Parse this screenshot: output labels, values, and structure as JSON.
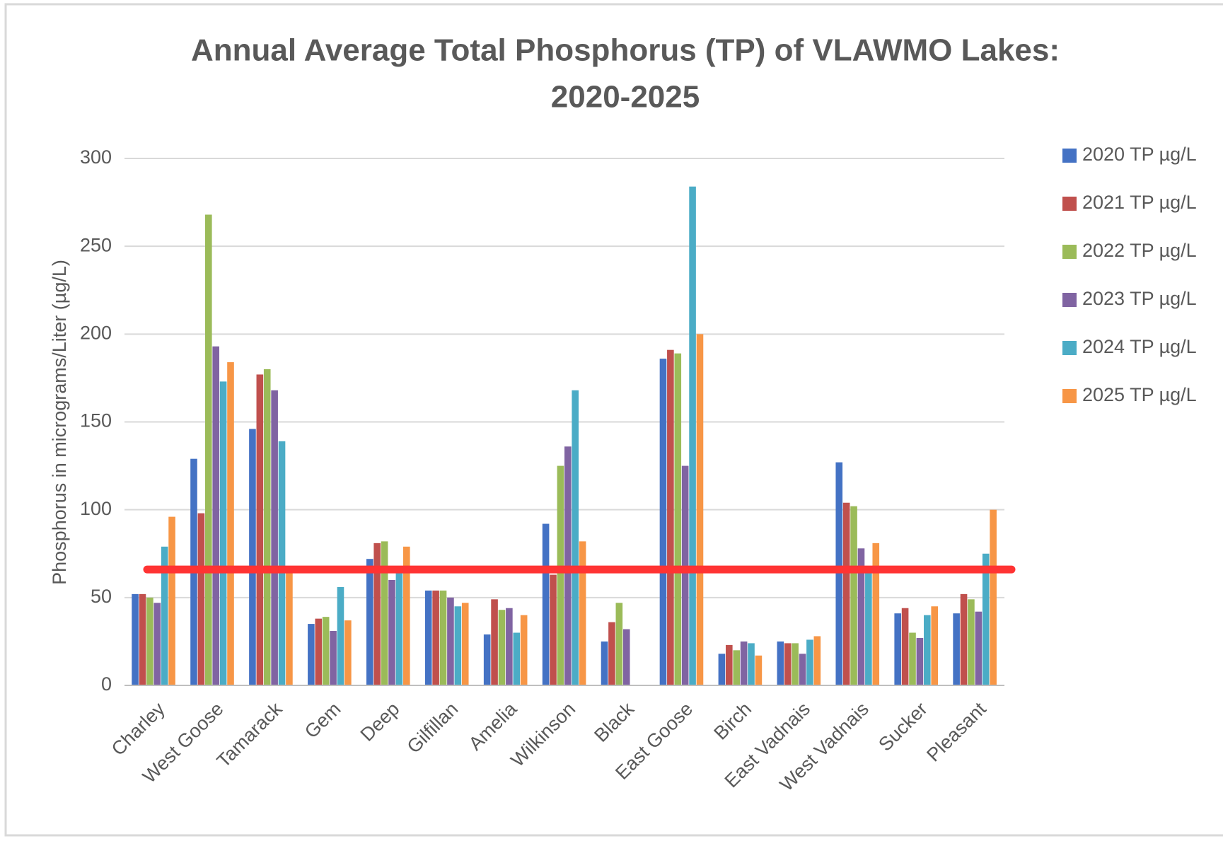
{
  "chart_data": {
    "type": "bar",
    "title": "Annual Average Total Phosphorus (TP) of VLAWMO Lakes:",
    "subtitle": "2020-2025",
    "y_label": "Phosphorus in micrograms/Liter (µg/L)",
    "categories": [
      "Charley",
      "West Goose",
      "Tamarack",
      "Gem",
      "Deep",
      "Gilfillan",
      "Amelia",
      "Wilkinson",
      "Black",
      "East Goose",
      "Birch",
      "East Vadnais",
      "West Vadnais",
      "Sucker",
      "Pleasant"
    ],
    "series": [
      {
        "name": "2020 TP µg/L",
        "color": "#4472c4",
        "values": [
          52,
          129,
          146,
          35,
          72,
          54,
          29,
          92,
          25,
          186,
          18,
          25,
          127,
          41,
          41
        ]
      },
      {
        "name": "2021 TP µg/L",
        "color": "#c0504d",
        "values": [
          52,
          98,
          177,
          38,
          81,
          54,
          49,
          63,
          36,
          191,
          23,
          24,
          104,
          44,
          52
        ]
      },
      {
        "name": "2022 TP µg/L",
        "color": "#9bbb59",
        "values": [
          50,
          268,
          180,
          39,
          82,
          54,
          43,
          125,
          47,
          189,
          20,
          24,
          102,
          30,
          49
        ]
      },
      {
        "name": "2023 TP µg/L",
        "color": "#8064a2",
        "values": [
          47,
          193,
          168,
          31,
          60,
          50,
          44,
          136,
          32,
          125,
          25,
          18,
          78,
          27,
          42
        ]
      },
      {
        "name": "2024 TP µg/L",
        "color": "#4bacc6",
        "values": [
          79,
          173,
          139,
          56,
          65,
          45,
          30,
          168,
          null,
          284,
          24,
          26,
          65,
          40,
          75
        ]
      },
      {
        "name": "2025 TP µg/L",
        "color": "#f79646",
        "values": [
          96,
          184,
          65,
          37,
          79,
          47,
          40,
          82,
          null,
          200,
          17,
          28,
          81,
          45,
          100
        ]
      }
    ],
    "reference_line": {
      "value": 66,
      "color": "#ff3333"
    },
    "ylim": [
      0,
      300
    ],
    "yticks": [
      0,
      50,
      100,
      150,
      200,
      250,
      300
    ],
    "grid": true,
    "legend": "right"
  }
}
